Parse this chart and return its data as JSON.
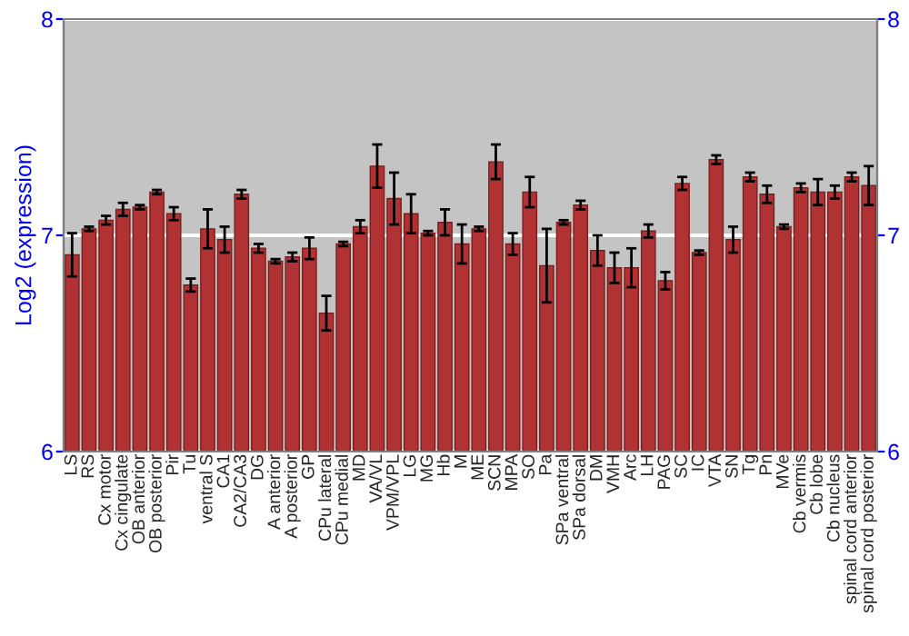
{
  "chart_data": {
    "type": "bar",
    "ylabel": "Log2 (expression)",
    "categories": [
      "LS",
      "RS",
      "Cx motor",
      "Cx cingulate",
      "OB anterior",
      "OB posterior",
      "Pir",
      "Tu",
      "ventral S",
      "CA1",
      "CA2/CA3",
      "DG",
      "A anterior",
      "A posterior",
      "GP",
      "CPu lateral",
      "CPu medial",
      "MD",
      "VA/VL",
      "VPM/VPL",
      "LG",
      "MG",
      "Hb",
      "M",
      "ME",
      "SCN",
      "MPA",
      "SO",
      "Pa",
      "SPa ventral",
      "SPa dorsal",
      "DM",
      "VMH",
      "Arc",
      "LH",
      "PAG",
      "SC",
      "IC",
      "VTA",
      "SN",
      "Tg",
      "Pn",
      "MVe",
      "Cb vermis",
      "Cb lobe",
      "Cb nucleus",
      "spinal cord anterior",
      "spinal cord posterior"
    ],
    "values": [
      6.91,
      7.03,
      7.07,
      7.12,
      7.13,
      7.2,
      7.1,
      6.77,
      7.03,
      6.98,
      7.19,
      6.94,
      6.88,
      6.9,
      6.94,
      6.64,
      6.96,
      7.04,
      7.32,
      7.17,
      7.1,
      7.01,
      7.06,
      6.96,
      7.03,
      7.34,
      6.96,
      7.2,
      6.86,
      7.06,
      7.14,
      6.93,
      6.85,
      6.85,
      7.02,
      6.79,
      7.24,
      6.92,
      7.35,
      6.98,
      7.27,
      7.19,
      7.04,
      7.22,
      7.2,
      7.2,
      7.27,
      7.23
    ],
    "errors": [
      0.1,
      0.01,
      0.02,
      0.03,
      0.01,
      0.01,
      0.03,
      0.03,
      0.09,
      0.06,
      0.02,
      0.02,
      0.01,
      0.02,
      0.05,
      0.08,
      0.01,
      0.03,
      0.1,
      0.12,
      0.09,
      0.01,
      0.06,
      0.09,
      0.01,
      0.08,
      0.05,
      0.07,
      0.17,
      0.01,
      0.02,
      0.07,
      0.07,
      0.09,
      0.03,
      0.04,
      0.03,
      0.01,
      0.02,
      0.06,
      0.02,
      0.04,
      0.01,
      0.02,
      0.06,
      0.03,
      0.02,
      0.09
    ],
    "color": "#b03232",
    "ylim": [
      6,
      8
    ],
    "yticks": [
      6,
      7,
      8
    ],
    "y2lim": [
      6,
      8
    ],
    "y2ticks": [
      6,
      7,
      8
    ],
    "grid": "y",
    "legend": false
  }
}
